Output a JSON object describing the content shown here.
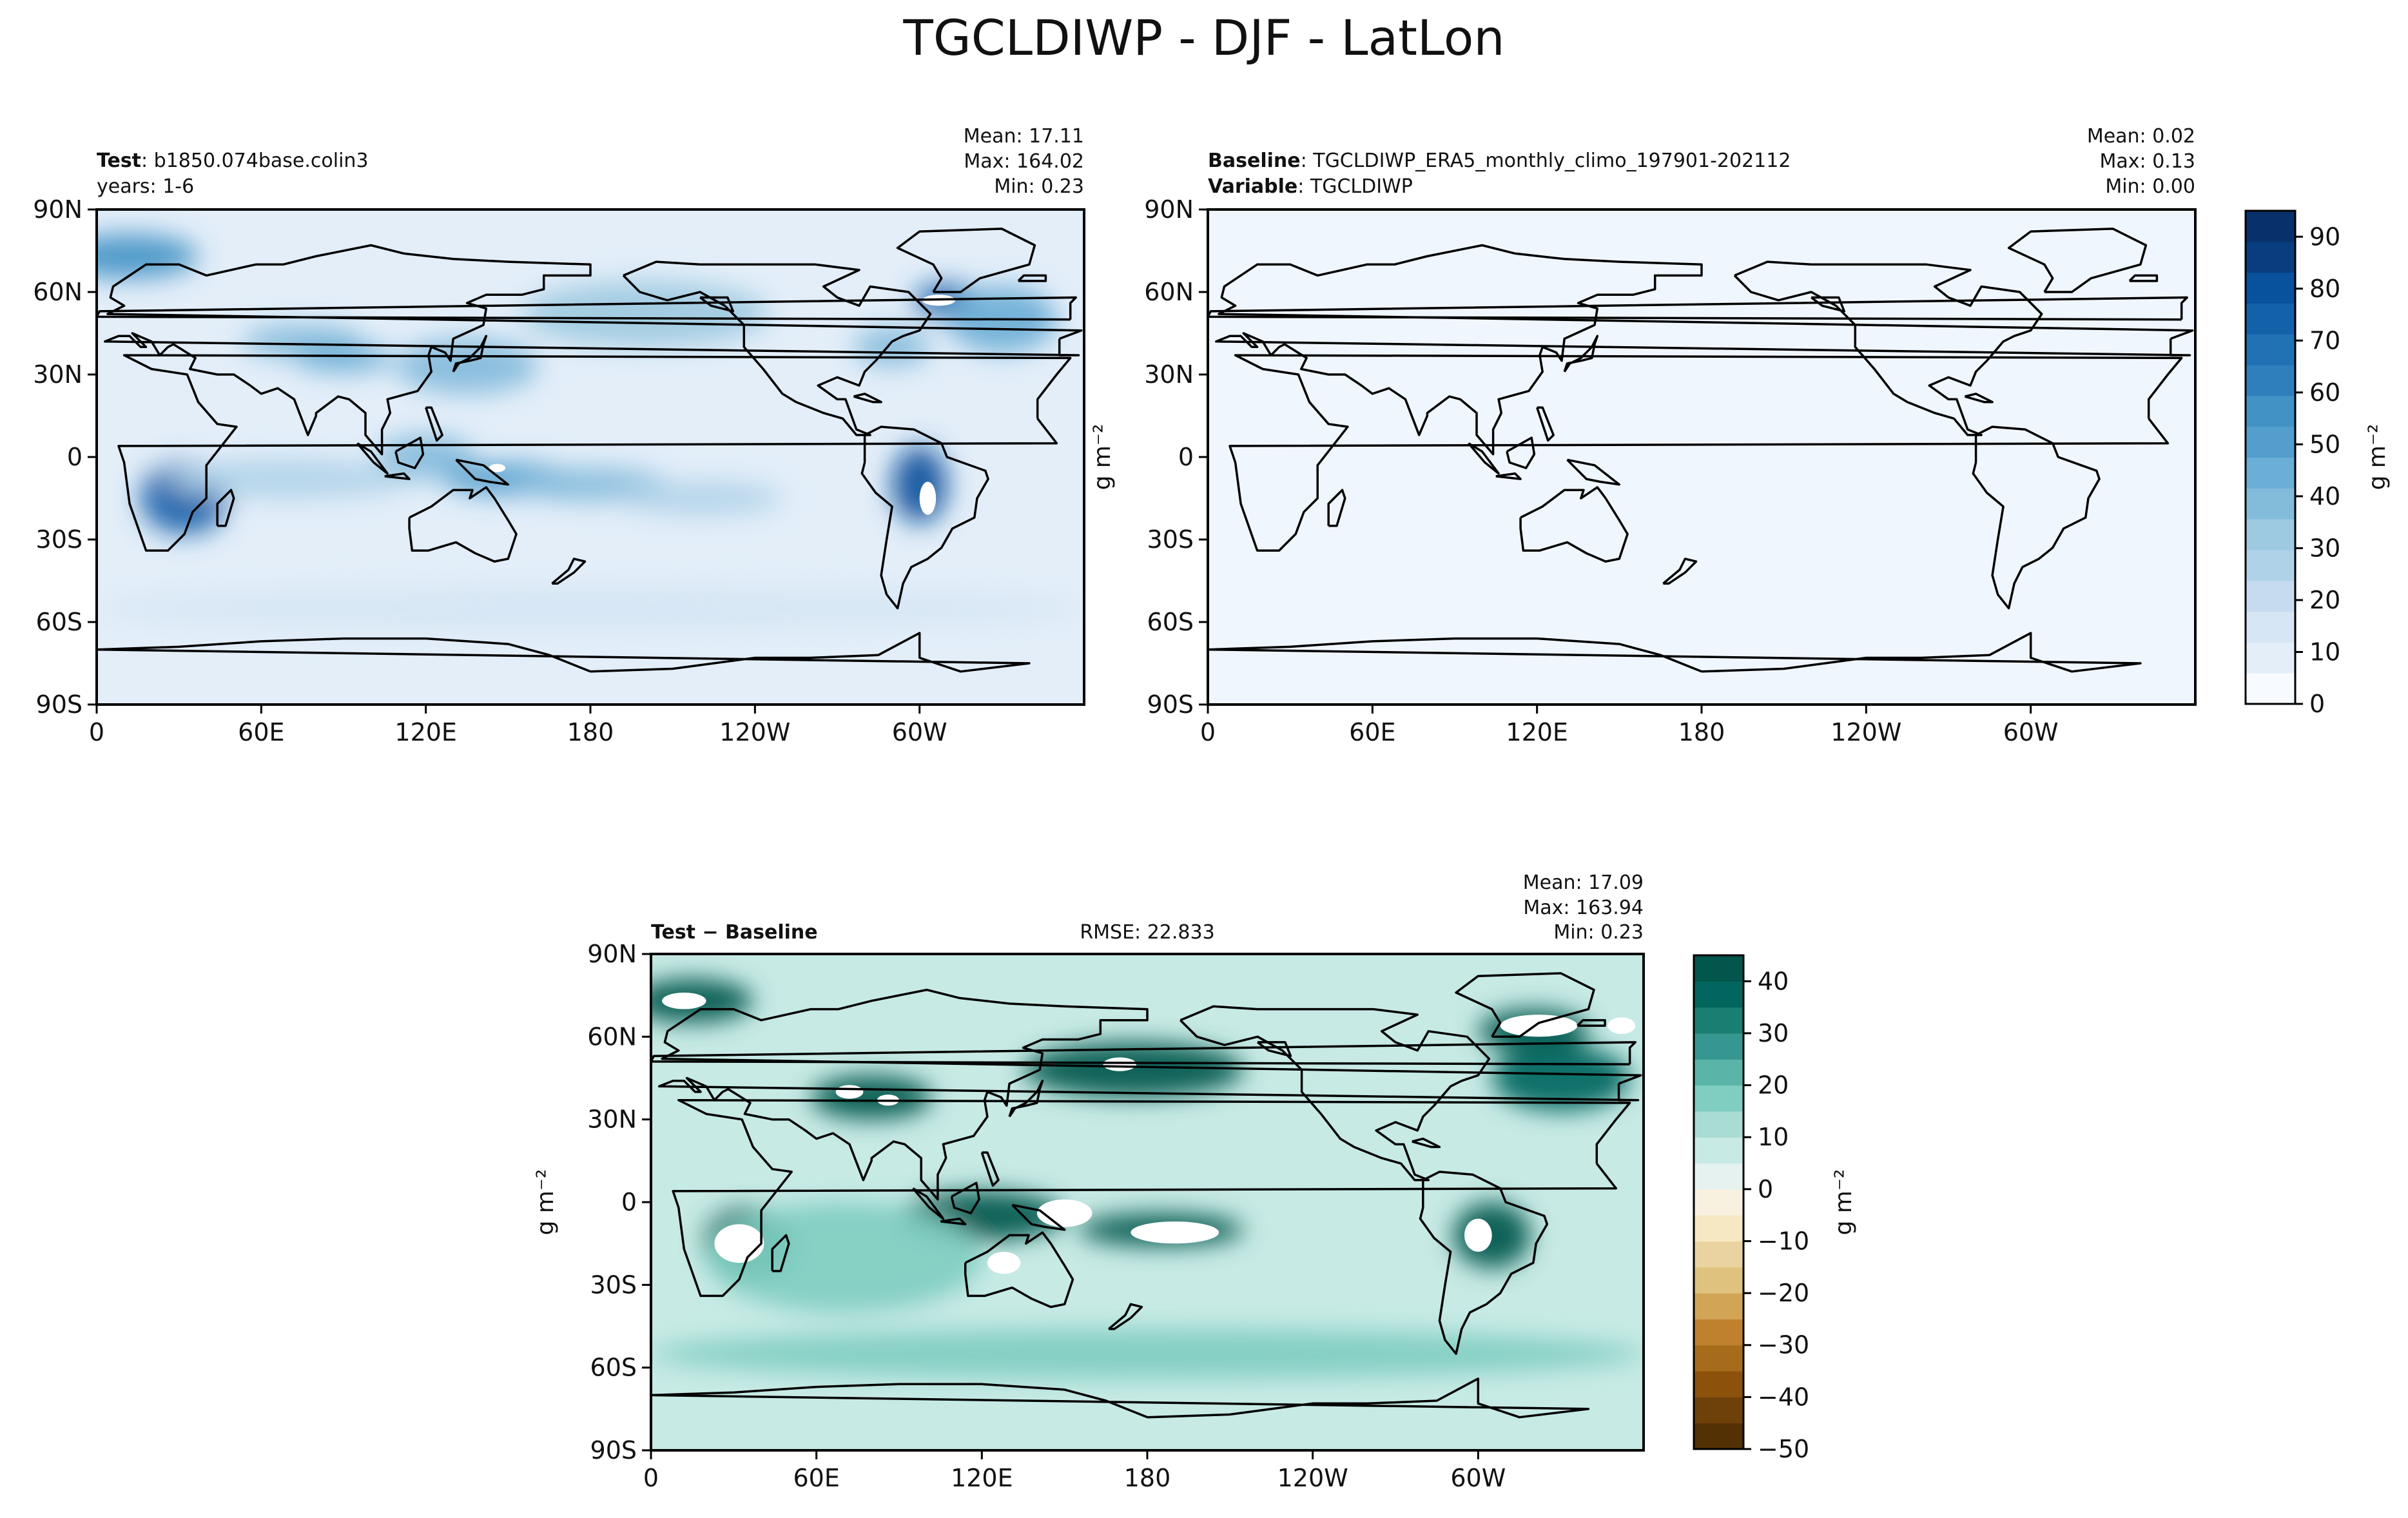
{
  "title": "TGCLDIWP - DJF - LatLon",
  "colors": {
    "blues": [
      "#f7fbff",
      "#e3eef9",
      "#d6e6f4",
      "#c6dbef",
      "#b0d2e8",
      "#9ecae1",
      "#83bbdb",
      "#6baed6",
      "#539ecd",
      "#4292c6",
      "#2f7fbc",
      "#2171b5",
      "#1361a9",
      "#08519c",
      "#083e80",
      "#08306b"
    ],
    "diff_browns": [
      "#543005",
      "#6e400a",
      "#8c510a",
      "#a66c1c",
      "#bf812d",
      "#d2a556",
      "#dfc27d",
      "#ead3a0",
      "#f6e8c3",
      "#f8f1e0"
    ],
    "diff_greens": [
      "#e5f2f0",
      "#c7eae5",
      "#a9dcd3",
      "#80cdc1",
      "#5ab4a8",
      "#35978f",
      "#1a7f73",
      "#01665e",
      "#02564c",
      "#003c30"
    ],
    "coast": "#000000"
  },
  "chart_data": [
    {
      "id": "test",
      "type": "heatmap",
      "label_bold": "Test",
      "label_rest": ": b1850.074base.colin3",
      "label2_bold": "",
      "label2_rest": "years: 1-6",
      "stats": [
        "Mean: 17.11",
        "Max: 164.02",
        "Min:  0.23"
      ],
      "rmse": "",
      "xticks": [
        "0",
        "60E",
        "120E",
        "180",
        "120W",
        "60W"
      ],
      "yticks": [
        "90N",
        "60N",
        "30N",
        "0",
        "30S",
        "60S",
        "90S"
      ],
      "xlim": [
        0,
        360
      ],
      "ylim": [
        -90,
        90
      ],
      "colormap": "Blues",
      "levels": [
        0,
        95
      ],
      "ylabel": "",
      "features": [
        {
          "lon": 32,
          "lat": -15,
          "value": 72,
          "rlon": 16,
          "rlat": 13
        },
        {
          "lon": 12,
          "lat": 73,
          "value": 58,
          "rlon": 25,
          "rlat": 8
        },
        {
          "lon": 75,
          "lat": 42,
          "value": 38,
          "rlon": 22,
          "rlat": 6
        },
        {
          "lon": 90,
          "lat": 36,
          "value": 42,
          "rlon": 18,
          "rlat": 5
        },
        {
          "lon": 135,
          "lat": 33,
          "value": 40,
          "rlon": 26,
          "rlat": 10
        },
        {
          "lon": 200,
          "lat": 52,
          "value": 30,
          "rlon": 45,
          "rlat": 12
        },
        {
          "lon": 120,
          "lat": 0,
          "value": 40,
          "rlon": 18,
          "rlat": 8
        },
        {
          "lon": 150,
          "lat": -8,
          "value": 48,
          "rlon": 24,
          "rlat": 6
        },
        {
          "lon": 180,
          "lat": -10,
          "value": 38,
          "rlon": 28,
          "rlat": 6
        },
        {
          "lon": 220,
          "lat": -15,
          "value": 25,
          "rlon": 30,
          "rlat": 6
        },
        {
          "lon": 70,
          "lat": -8,
          "value": 25,
          "rlon": 45,
          "rlat": 7
        },
        {
          "lon": 300,
          "lat": -10,
          "value": 78,
          "rlon": 10,
          "rlat": 14
        },
        {
          "lon": 310,
          "lat": 57,
          "value": 75,
          "rlon": 12,
          "rlat": 6
        },
        {
          "lon": 330,
          "lat": 50,
          "value": 42,
          "rlon": 20,
          "rlat": 12
        },
        {
          "lon": 290,
          "lat": 40,
          "value": 40,
          "rlon": 14,
          "rlat": 7
        },
        {
          "lon": 180,
          "lat": -55,
          "value": 14,
          "rlon": 180,
          "rlat": 8
        }
      ]
    },
    {
      "id": "baseline",
      "type": "heatmap",
      "label_bold": "Baseline",
      "label_rest": ": TGCLDIWP_ERA5_monthly_climo_197901-202112",
      "label2_bold": "Variable",
      "label2_rest": ": TGCLDIWP",
      "stats": [
        "Mean:  0.02",
        "Max:  0.13",
        "Min:  0.00"
      ],
      "rmse": "",
      "xticks": [
        "0",
        "60E",
        "120E",
        "180",
        "120W",
        "60W"
      ],
      "yticks": [
        "90N",
        "60N",
        "30N",
        "0",
        "30S",
        "60S",
        "90S"
      ],
      "xlim": [
        0,
        360
      ],
      "ylim": [
        -90,
        90
      ],
      "colormap": "Blues",
      "levels": [
        0,
        95
      ],
      "ylabel": "",
      "features": []
    },
    {
      "id": "diff",
      "type": "heatmap",
      "label_bold": "Test",
      "label_rest": " − Baseline",
      "label2_bold": "",
      "label2_rest": "",
      "stats": [
        "Mean: 17.09",
        "Max: 163.94",
        "Min:  0.23"
      ],
      "rmse": "RMSE: 22.833",
      "xticks": [
        "0",
        "60E",
        "120E",
        "180",
        "120W",
        "60W"
      ],
      "yticks": [
        "90N",
        "60N",
        "30N",
        "0",
        "30S",
        "60S",
        "90S"
      ],
      "xlim": [
        0,
        360
      ],
      "ylim": [
        -90,
        90
      ],
      "colormap": "BrBG",
      "levels": [
        -50,
        45
      ],
      "ylabel": "g m⁻²",
      "features": [
        {
          "lon": 35,
          "lat": -15,
          "value": 60,
          "rlon": 16,
          "rlat": 13
        },
        {
          "lon": 15,
          "lat": 73,
          "value": 50,
          "rlon": 22,
          "rlat": 8
        },
        {
          "lon": 80,
          "lat": 38,
          "value": 60,
          "rlon": 22,
          "rlat": 8
        },
        {
          "lon": 175,
          "lat": 48,
          "value": 60,
          "rlon": 40,
          "rlat": 10
        },
        {
          "lon": 120,
          "lat": -5,
          "value": 55,
          "rlon": 30,
          "rlat": 9
        },
        {
          "lon": 185,
          "lat": -10,
          "value": 60,
          "rlon": 30,
          "rlat": 6
        },
        {
          "lon": 305,
          "lat": -12,
          "value": 55,
          "rlon": 14,
          "rlat": 12
        },
        {
          "lon": 320,
          "lat": 62,
          "value": 55,
          "rlon": 20,
          "rlat": 8
        },
        {
          "lon": 330,
          "lat": 45,
          "value": 35,
          "rlon": 25,
          "rlat": 12
        },
        {
          "lon": 180,
          "lat": -55,
          "value": 18,
          "rlon": 180,
          "rlat": 9
        },
        {
          "lon": 70,
          "lat": -20,
          "value": 15,
          "rlon": 50,
          "rlat": 20
        }
      ]
    }
  ],
  "colorbars": [
    {
      "id": "cb-blues",
      "ticks": [
        "0",
        "10",
        "20",
        "30",
        "40",
        "50",
        "60",
        "70",
        "80",
        "90"
      ],
      "tick_values": [
        0,
        10,
        20,
        30,
        40,
        50,
        60,
        70,
        80,
        90
      ],
      "range": [
        0,
        95
      ],
      "label": "g m⁻²"
    },
    {
      "id": "cb-diff",
      "ticks": [
        "−50",
        "−40",
        "−30",
        "−20",
        "−10",
        "0",
        "10",
        "20",
        "30",
        "40"
      ],
      "tick_values": [
        -50,
        -40,
        -30,
        -20,
        -10,
        0,
        10,
        20,
        30,
        40
      ],
      "range": [
        -50,
        45
      ],
      "label": "g m⁻²"
    }
  ]
}
